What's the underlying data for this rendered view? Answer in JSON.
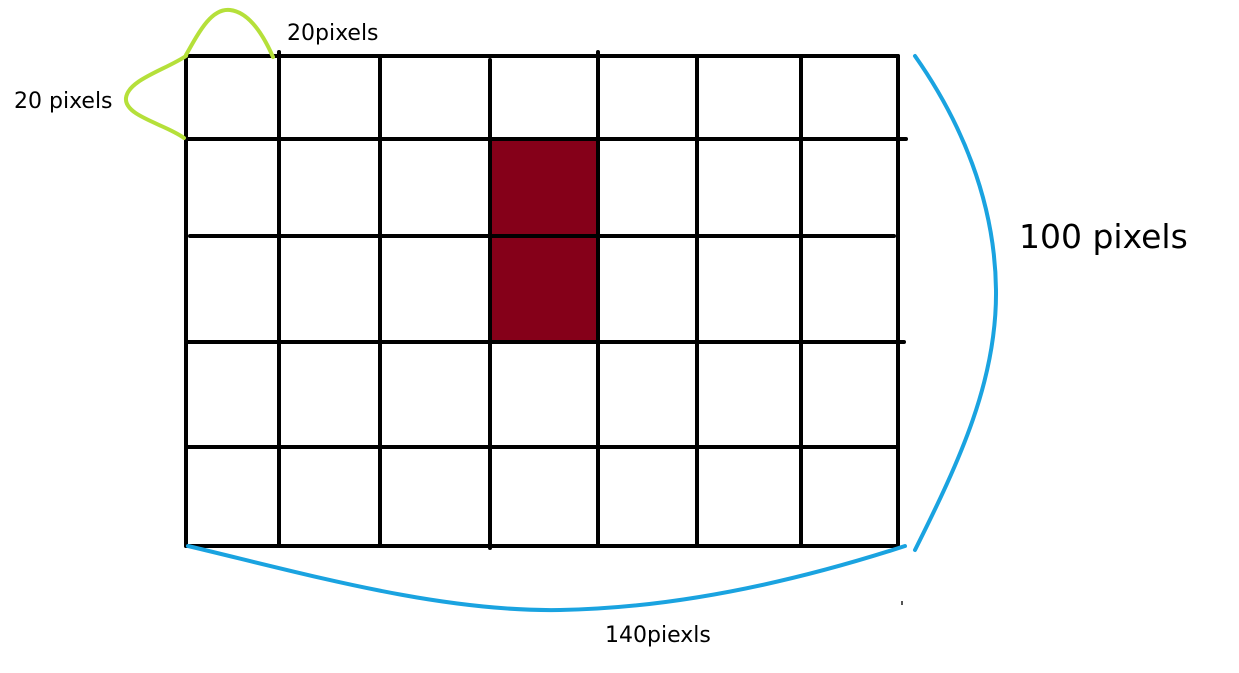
{
  "diagram": {
    "labels": {
      "cell_width": "20pixels",
      "cell_height": "20 pixels",
      "total_height": "100 pixels",
      "total_width": "140piexls"
    },
    "grid": {
      "columns": 7,
      "rows": 5,
      "filled_cells": [
        {
          "col": 3,
          "row": 1
        },
        {
          "col": 3,
          "row": 2
        }
      ]
    },
    "colors": {
      "grid_line": "#000000",
      "filled_cell": "#850019",
      "small_brace": "#b5e03a",
      "large_brace": "#1aa3e0",
      "background": "#ffffff"
    }
  }
}
